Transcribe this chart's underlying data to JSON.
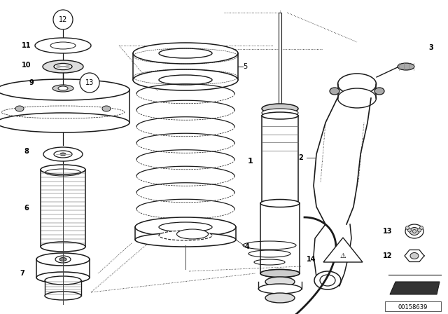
{
  "background_color": "#ffffff",
  "diagram_color": "#1a1a1a",
  "watermark": "00158639",
  "figsize": [
    6.4,
    4.48
  ],
  "dpi": 100
}
